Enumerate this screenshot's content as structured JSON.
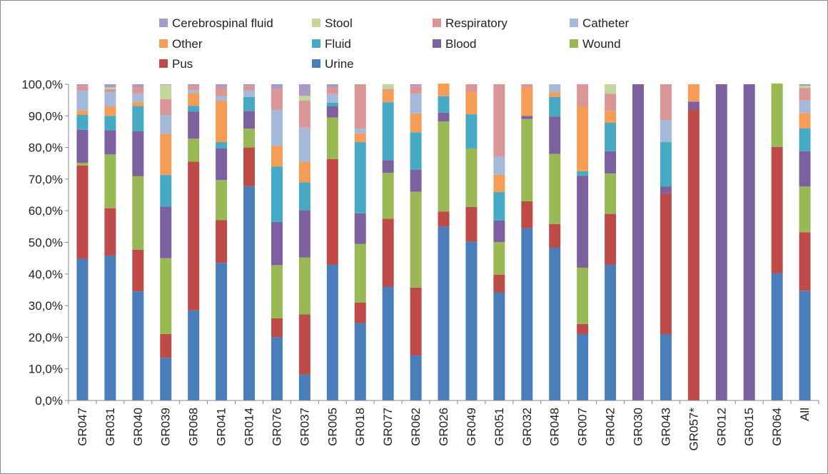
{
  "chart_data": {
    "type": "bar",
    "stacked": true,
    "percent": true,
    "title": "",
    "xlabel": "",
    "ylabel": "",
    "ylim": [
      0,
      100
    ],
    "ytick_labels": [
      "0,0%",
      "10,0%",
      "20,0%",
      "30,0%",
      "40,0%",
      "50,0%",
      "60,0%",
      "70,0%",
      "80,0%",
      "90,0%",
      "100,0%"
    ],
    "grid": false,
    "legend_position": "top",
    "legend_order": [
      "Cerebrospinal fluid",
      "Stool",
      "Respiratory",
      "Catheter",
      "Other",
      "Fluid",
      "Blood",
      "Wound",
      "Pus",
      "Urine"
    ],
    "categories": [
      "GR047",
      "GR031",
      "GR040",
      "GR039",
      "GR068",
      "GR041",
      "GR014",
      "GR076",
      "GR037",
      "GR005",
      "GR018",
      "GR077",
      "GR062",
      "GR026",
      "GR049",
      "GR051",
      "GR032",
      "GR048",
      "GR007",
      "GR042",
      "GR030",
      "GR043",
      "GR057*",
      "GR012",
      "GR015",
      "GR064",
      "All"
    ],
    "series": [
      {
        "name": "Urine",
        "color": "#4a7ebb",
        "values": [
          44.8,
          45.8,
          34.5,
          13.5,
          28.5,
          43.5,
          67.8,
          20.0,
          8.2,
          43.0,
          24.5,
          36.0,
          14.2,
          55.0,
          50.2,
          34.2,
          54.5,
          48.3,
          21.0,
          43.0,
          0,
          21.0,
          0,
          0,
          0,
          40.2,
          34.7
        ]
      },
      {
        "name": "Pus",
        "color": "#be4b48",
        "values": [
          29.5,
          15.0,
          13.2,
          7.5,
          47.0,
          13.5,
          12.2,
          6.0,
          19.0,
          33.3,
          6.5,
          21.5,
          21.5,
          4.7,
          11.0,
          5.6,
          8.5,
          7.5,
          3.2,
          16.0,
          0,
          44.5,
          92.0,
          0,
          0,
          40.0,
          18.5
        ]
      },
      {
        "name": "Wound",
        "color": "#98b954",
        "values": [
          0.8,
          17.0,
          23.2,
          24.0,
          7.3,
          12.7,
          6.0,
          16.8,
          18.0,
          13.2,
          18.5,
          14.5,
          30.3,
          28.5,
          18.5,
          10.3,
          26.0,
          22.2,
          17.8,
          12.8,
          0,
          0,
          0,
          0,
          0,
          20.0,
          14.5
        ]
      },
      {
        "name": "Blood",
        "color": "#7d60a0",
        "values": [
          10.5,
          7.7,
          14.2,
          16.3,
          8.6,
          10.0,
          5.5,
          13.7,
          15.0,
          3.5,
          9.7,
          4.0,
          7.0,
          2.8,
          0,
          6.8,
          1.0,
          11.8,
          29.0,
          7.0,
          100.0,
          2.2,
          2.5,
          100.0,
          100.0,
          0,
          11.1
        ]
      },
      {
        "name": "Fluid",
        "color": "#46aac5",
        "values": [
          4.7,
          4.5,
          8.0,
          10.0,
          1.8,
          2.0,
          4.5,
          17.5,
          8.8,
          1.2,
          22.5,
          18.3,
          11.8,
          5.2,
          10.8,
          9.0,
          0,
          6.2,
          1.5,
          9.0,
          0,
          14.0,
          0,
          0,
          0,
          0,
          7.2
        ]
      },
      {
        "name": "Other",
        "color": "#f59d56",
        "values": [
          1.5,
          3.0,
          1.2,
          13.0,
          4.0,
          13.0,
          0,
          6.5,
          6.5,
          0,
          2.8,
          3.7,
          6.0,
          4.0,
          7.0,
          5.5,
          9.0,
          1.5,
          20.5,
          3.8,
          0,
          0,
          5.5,
          0,
          0,
          0,
          4.9
        ]
      },
      {
        "name": "Catheter",
        "color": "#a5b9da",
        "values": [
          6.2,
          4.5,
          2.8,
          6.0,
          1.0,
          1.5,
          2.0,
          11.5,
          10.8,
          2.7,
          1.5,
          0,
          6.2,
          0,
          0,
          5.7,
          0,
          2.5,
          0,
          0,
          0,
          7.0,
          0,
          0,
          0,
          0,
          4.0
        ]
      },
      {
        "name": "Respiratory",
        "color": "#d99694",
        "values": [
          1.5,
          1.0,
          2.0,
          5.0,
          1.2,
          3.0,
          1.5,
          6.5,
          8.5,
          2.0,
          14.0,
          0.5,
          2.5,
          0,
          2.5,
          22.9,
          1.0,
          0,
          7.0,
          5.4,
          0,
          11.3,
          0,
          0,
          0,
          0,
          3.9
        ]
      },
      {
        "name": "Stool",
        "color": "#c3d69b",
        "values": [
          0,
          0.5,
          0,
          4.5,
          0,
          0,
          0,
          0,
          1.5,
          0,
          0,
          1.5,
          0,
          0,
          0,
          0,
          0,
          0,
          0,
          3.0,
          0,
          0,
          0,
          0,
          0,
          0,
          0.7
        ]
      },
      {
        "name": "Cerebrospinal fluid",
        "color": "#a99bc5",
        "values": [
          0.5,
          1.0,
          0.9,
          0.2,
          0.6,
          0.8,
          0.5,
          1.5,
          3.7,
          1.1,
          0,
          0,
          0.5,
          0,
          0,
          0,
          0,
          0,
          0,
          0,
          0,
          0,
          0,
          0,
          0,
          0,
          0.5
        ]
      }
    ]
  }
}
